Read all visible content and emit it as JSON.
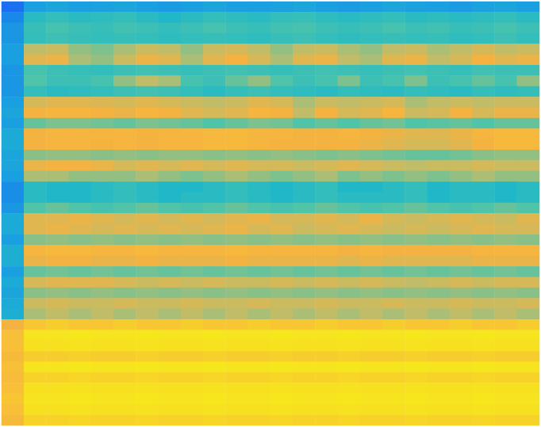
{
  "chart_data": {
    "type": "heatmap",
    "tick_labels": false,
    "zlim": [
      10,
      100
    ],
    "cells": [
      [
        20,
        30,
        32,
        30,
        31,
        32,
        30,
        29,
        30,
        32,
        30,
        30,
        31,
        32,
        30,
        29,
        30,
        32,
        31,
        30,
        29,
        31,
        32,
        30
      ],
      [
        25,
        42,
        44,
        42,
        43,
        44,
        42,
        40,
        42,
        44,
        43,
        42,
        44,
        45,
        43,
        42,
        43,
        44,
        42,
        43,
        42,
        43,
        44,
        42
      ],
      [
        28,
        45,
        48,
        46,
        45,
        47,
        46,
        44,
        46,
        48,
        46,
        45,
        47,
        48,
        46,
        45,
        46,
        48,
        46,
        47,
        45,
        46,
        48,
        46
      ],
      [
        28,
        44,
        46,
        45,
        44,
        45,
        44,
        43,
        44,
        45,
        44,
        43,
        45,
        46,
        44,
        43,
        44,
        45,
        44,
        45,
        43,
        44,
        46,
        44
      ],
      [
        30,
        60,
        62,
        56,
        54,
        58,
        62,
        60,
        56,
        62,
        64,
        60,
        56,
        60,
        62,
        58,
        56,
        60,
        62,
        58,
        60,
        64,
        60,
        62
      ],
      [
        30,
        66,
        68,
        58,
        56,
        62,
        68,
        66,
        58,
        66,
        70,
        64,
        58,
        66,
        68,
        60,
        58,
        66,
        68,
        60,
        64,
        70,
        66,
        68
      ],
      [
        28,
        48,
        46,
        45,
        44,
        46,
        47,
        46,
        45,
        46,
        47,
        46,
        45,
        46,
        47,
        46,
        45,
        46,
        47,
        46,
        45,
        47,
        46,
        46
      ],
      [
        28,
        50,
        46,
        46,
        48,
        56,
        60,
        58,
        48,
        46,
        52,
        56,
        50,
        46,
        48,
        54,
        46,
        48,
        54,
        46,
        48,
        52,
        48,
        56
      ],
      [
        28,
        44,
        42,
        43,
        44,
        46,
        47,
        46,
        44,
        42,
        44,
        46,
        44,
        43,
        42,
        44,
        43,
        42,
        44,
        43,
        42,
        44,
        43,
        44
      ],
      [
        30,
        64,
        66,
        66,
        65,
        64,
        66,
        64,
        62,
        60,
        62,
        66,
        64,
        58,
        62,
        60,
        62,
        64,
        58,
        60,
        62,
        60,
        62,
        62
      ],
      [
        32,
        70,
        72,
        72,
        70,
        68,
        72,
        70,
        66,
        64,
        66,
        72,
        70,
        60,
        70,
        64,
        66,
        72,
        62,
        64,
        70,
        64,
        68,
        68
      ],
      [
        30,
        52,
        54,
        54,
        53,
        52,
        54,
        53,
        52,
        50,
        52,
        54,
        53,
        50,
        52,
        50,
        52,
        53,
        50,
        51,
        52,
        50,
        52,
        52
      ],
      [
        34,
        70,
        72,
        72,
        72,
        72,
        71,
        72,
        72,
        74,
        74,
        72,
        72,
        70,
        71,
        72,
        70,
        68,
        66,
        66,
        68,
        72,
        74,
        74
      ],
      [
        34,
        70,
        72,
        72,
        71,
        72,
        70,
        72,
        72,
        74,
        74,
        72,
        71,
        70,
        70,
        70,
        68,
        66,
        64,
        64,
        66,
        70,
        74,
        74
      ],
      [
        32,
        55,
        56,
        56,
        55,
        56,
        55,
        56,
        56,
        55,
        56,
        55,
        56,
        55,
        54,
        55,
        54,
        53,
        52,
        52,
        53,
        55,
        56,
        56
      ],
      [
        32,
        68,
        70,
        70,
        68,
        64,
        66,
        64,
        66,
        64,
        66,
        64,
        64,
        62,
        64,
        66,
        64,
        62,
        60,
        62,
        62,
        64,
        62,
        62
      ],
      [
        30,
        58,
        58,
        56,
        56,
        56,
        58,
        56,
        54,
        56,
        58,
        56,
        54,
        56,
        58,
        54,
        56,
        54,
        56,
        54,
        56,
        58,
        56,
        56
      ],
      [
        26,
        42,
        40,
        40,
        42,
        44,
        42,
        40,
        40,
        42,
        44,
        42,
        40,
        42,
        44,
        40,
        40,
        42,
        44,
        40,
        42,
        42,
        40,
        42
      ],
      [
        26,
        42,
        40,
        40,
        42,
        44,
        42,
        40,
        42,
        42,
        44,
        42,
        40,
        42,
        44,
        42,
        42,
        42,
        44,
        40,
        42,
        42,
        40,
        42
      ],
      [
        28,
        50,
        52,
        50,
        48,
        50,
        52,
        50,
        48,
        50,
        52,
        50,
        48,
        50,
        52,
        50,
        48,
        50,
        52,
        50,
        48,
        50,
        52,
        50
      ],
      [
        34,
        66,
        66,
        68,
        66,
        64,
        66,
        64,
        66,
        64,
        66,
        68,
        64,
        64,
        66,
        64,
        68,
        64,
        62,
        64,
        66,
        64,
        62,
        66
      ],
      [
        34,
        66,
        68,
        66,
        64,
        66,
        64,
        66,
        64,
        66,
        68,
        64,
        66,
        62,
        64,
        66,
        64,
        62,
        64,
        62,
        64,
        66,
        64,
        64
      ],
      [
        30,
        55,
        56,
        55,
        56,
        55,
        56,
        55,
        56,
        55,
        56,
        55,
        56,
        55,
        56,
        55,
        56,
        55,
        56,
        55,
        56,
        55,
        56,
        55
      ],
      [
        36,
        72,
        74,
        74,
        72,
        72,
        74,
        72,
        72,
        72,
        74,
        72,
        72,
        72,
        72,
        70,
        72,
        70,
        70,
        70,
        70,
        72,
        72,
        72
      ],
      [
        36,
        68,
        70,
        70,
        68,
        68,
        70,
        68,
        68,
        68,
        70,
        68,
        68,
        68,
        68,
        66,
        68,
        66,
        66,
        66,
        66,
        68,
        68,
        68
      ],
      [
        30,
        52,
        53,
        52,
        53,
        52,
        53,
        52,
        53,
        52,
        53,
        52,
        53,
        52,
        53,
        52,
        53,
        52,
        53,
        52,
        53,
        52,
        53,
        52
      ],
      [
        34,
        64,
        66,
        66,
        66,
        64,
        62,
        64,
        62,
        64,
        62,
        62,
        64,
        62,
        64,
        62,
        64,
        62,
        60,
        62,
        64,
        62,
        64,
        64
      ],
      [
        32,
        55,
        56,
        55,
        56,
        55,
        56,
        55,
        56,
        55,
        56,
        55,
        56,
        55,
        56,
        55,
        56,
        55,
        56,
        55,
        56,
        55,
        56,
        55
      ],
      [
        34,
        62,
        64,
        62,
        62,
        64,
        62,
        62,
        64,
        62,
        62,
        64,
        62,
        62,
        64,
        62,
        62,
        64,
        62,
        62,
        64,
        62,
        62,
        64
      ],
      [
        36,
        58,
        60,
        58,
        60,
        58,
        60,
        58,
        60,
        58,
        60,
        58,
        60,
        58,
        60,
        58,
        60,
        58,
        60,
        58,
        60,
        58,
        60,
        58
      ],
      [
        70,
        82,
        84,
        82,
        82,
        84,
        82,
        82,
        84,
        82,
        82,
        84,
        82,
        82,
        84,
        82,
        82,
        84,
        82,
        82,
        84,
        82,
        82,
        84
      ],
      [
        80,
        92,
        92,
        93,
        92,
        92,
        93,
        92,
        92,
        93,
        92,
        92,
        93,
        92,
        92,
        93,
        92,
        92,
        93,
        92,
        92,
        93,
        92,
        92
      ],
      [
        80,
        90,
        90,
        91,
        90,
        90,
        91,
        90,
        90,
        91,
        90,
        90,
        91,
        90,
        90,
        91,
        90,
        90,
        91,
        90,
        90,
        91,
        90,
        90
      ],
      [
        76,
        84,
        84,
        85,
        84,
        84,
        85,
        84,
        84,
        85,
        84,
        84,
        85,
        84,
        84,
        85,
        84,
        84,
        85,
        84,
        84,
        85,
        84,
        84
      ],
      [
        80,
        92,
        92,
        93,
        92,
        92,
        93,
        92,
        92,
        93,
        92,
        92,
        93,
        92,
        92,
        93,
        92,
        92,
        93,
        92,
        92,
        93,
        92,
        92
      ],
      [
        78,
        86,
        86,
        87,
        86,
        86,
        87,
        86,
        86,
        87,
        86,
        86,
        87,
        86,
        86,
        87,
        86,
        86,
        87,
        86,
        86,
        87,
        86,
        86
      ],
      [
        80,
        90,
        90,
        91,
        90,
        90,
        91,
        90,
        90,
        91,
        90,
        90,
        91,
        90,
        90,
        91,
        90,
        90,
        91,
        90,
        90,
        91,
        90,
        90
      ],
      [
        82,
        92,
        92,
        93,
        92,
        92,
        93,
        92,
        92,
        93,
        92,
        92,
        93,
        92,
        92,
        93,
        92,
        92,
        93,
        92,
        92,
        93,
        92,
        92
      ],
      [
        80,
        90,
        90,
        91,
        90,
        90,
        91,
        90,
        90,
        91,
        90,
        90,
        91,
        90,
        90,
        91,
        90,
        90,
        91,
        90,
        90,
        91,
        90,
        90
      ],
      [
        76,
        86,
        86,
        87,
        86,
        86,
        87,
        86,
        86,
        87,
        86,
        86,
        87,
        86,
        86,
        87,
        86,
        86,
        87,
        86,
        86,
        87,
        86,
        86
      ]
    ]
  }
}
